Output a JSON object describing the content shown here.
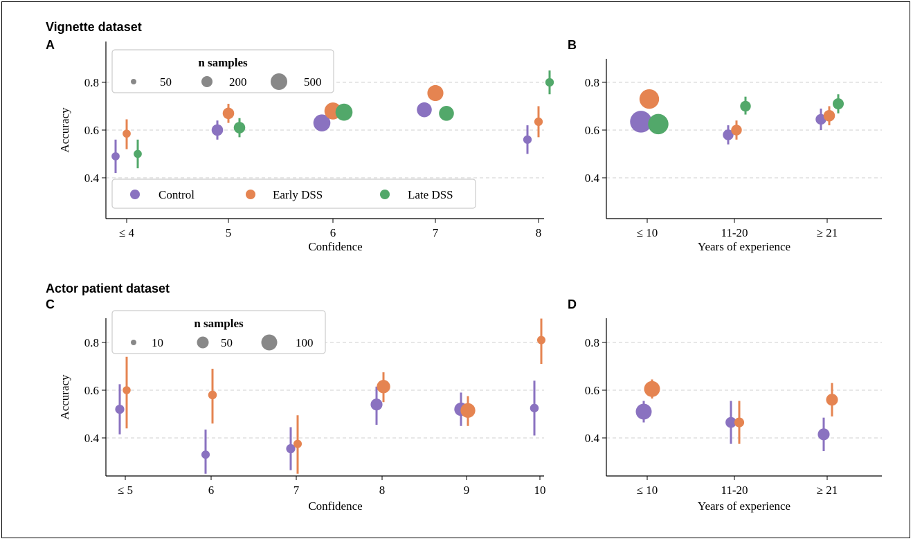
{
  "sections": {
    "top": "Vignette dataset",
    "bottom": "Actor patient dataset"
  },
  "colors": {
    "Control": "#8a72c0",
    "Early DSS": "#e58451",
    "Late DSS": "#52a86a",
    "grid": "#cfcfcf",
    "size_legend_marker": "#888888"
  },
  "legends": {
    "groups": [
      "Control",
      "Early DSS",
      "Late DSS"
    ],
    "size_legend_A": {
      "title": "n samples",
      "entries": [
        "50",
        "200",
        "500"
      ]
    },
    "size_legend_C": {
      "title": "n samples",
      "entries": [
        "10",
        "50",
        "100"
      ]
    }
  },
  "chart_data": [
    {
      "panel": "A",
      "type": "scatter",
      "xlabel": "Confidence",
      "ylabel": "Accuracy",
      "categories": [
        "≤ 4",
        "5",
        "6",
        "7",
        "8"
      ],
      "ylim": [
        0.3,
        0.9
      ],
      "yticks": [
        "0.4",
        "0.6",
        "0.8"
      ],
      "grid": "horizontal dashed",
      "legend_placement": "top-left (size), bottom-left (groups)",
      "series": [
        {
          "name": "Control",
          "values": [
            0.49,
            0.6,
            0.63,
            0.685,
            0.56
          ],
          "err_low": [
            0.42,
            0.56,
            0.615,
            0.67,
            0.5
          ],
          "err_high": [
            0.56,
            0.64,
            0.645,
            0.7,
            0.62
          ],
          "n": [
            15,
            80,
            300,
            200,
            20
          ]
        },
        {
          "name": "Early DSS",
          "values": [
            0.585,
            0.67,
            0.68,
            0.755,
            0.635
          ],
          "err_low": [
            0.52,
            0.63,
            0.66,
            0.745,
            0.57
          ],
          "err_high": [
            0.645,
            0.71,
            0.7,
            0.77,
            0.7
          ],
          "n": [
            15,
            80,
            300,
            250,
            20
          ]
        },
        {
          "name": "Late DSS",
          "values": [
            0.5,
            0.61,
            0.675,
            0.67,
            0.8
          ],
          "err_low": [
            0.44,
            0.57,
            0.66,
            0.655,
            0.75
          ],
          "err_high": [
            0.56,
            0.65,
            0.69,
            0.685,
            0.85
          ],
          "n": [
            15,
            80,
            300,
            200,
            20
          ]
        }
      ]
    },
    {
      "panel": "B",
      "type": "scatter",
      "xlabel": "Years of experience",
      "ylabel": "",
      "categories": [
        "≤ 10",
        "11-20",
        "≥ 21"
      ],
      "ylim": [
        0.3,
        0.9
      ],
      "yticks": [
        "0.4",
        "0.6",
        "0.8"
      ],
      "grid": "horizontal dashed",
      "series": [
        {
          "name": "Control",
          "values": [
            0.635,
            0.58,
            0.645
          ],
          "err_low": [
            0.62,
            0.54,
            0.6
          ],
          "err_high": [
            0.65,
            0.62,
            0.69
          ],
          "n": [
            600,
            60,
            60
          ]
        },
        {
          "name": "Early DSS",
          "values": [
            0.73,
            0.6,
            0.66
          ],
          "err_low": [
            0.72,
            0.56,
            0.62
          ],
          "err_high": [
            0.74,
            0.64,
            0.7
          ],
          "n": [
            450,
            60,
            80
          ]
        },
        {
          "name": "Late DSS",
          "values": [
            0.625,
            0.7,
            0.71
          ],
          "err_low": [
            0.61,
            0.665,
            0.67
          ],
          "err_high": [
            0.64,
            0.74,
            0.75
          ],
          "n": [
            500,
            60,
            70
          ]
        }
      ]
    },
    {
      "panel": "C",
      "type": "scatter",
      "xlabel": "Confidence",
      "ylabel": "Accuracy",
      "categories": [
        "≤ 5",
        "6",
        "7",
        "8",
        "9",
        "10"
      ],
      "ylim": [
        0.25,
        0.9
      ],
      "yticks": [
        "0.4",
        "0.6",
        "0.8"
      ],
      "grid": "horizontal dashed",
      "legend_placement": "top-left (size)",
      "series": [
        {
          "name": "Control",
          "values": [
            0.52,
            0.33,
            0.355,
            0.54,
            0.52,
            0.525
          ],
          "err_low": [
            0.415,
            0.25,
            0.265,
            0.455,
            0.45,
            0.41
          ],
          "err_high": [
            0.625,
            0.435,
            0.445,
            0.615,
            0.59,
            0.64
          ],
          "n": [
            15,
            10,
            15,
            40,
            60,
            12
          ]
        },
        {
          "name": "Early DSS",
          "values": [
            0.6,
            0.58,
            0.375,
            0.615,
            0.515,
            0.81
          ],
          "err_low": [
            0.44,
            0.46,
            0.25,
            0.55,
            0.45,
            0.71
          ],
          "err_high": [
            0.74,
            0.69,
            0.495,
            0.675,
            0.575,
            0.9
          ],
          "n": [
            8,
            12,
            10,
            60,
            80,
            10
          ]
        }
      ]
    },
    {
      "panel": "D",
      "type": "scatter",
      "xlabel": "Years of experience",
      "ylabel": "",
      "categories": [
        "≤ 10",
        "11-20",
        "≥ 21"
      ],
      "ylim": [
        0.25,
        0.9
      ],
      "yticks": [
        "0.4",
        "0.6",
        "0.8"
      ],
      "grid": "horizontal dashed",
      "series": [
        {
          "name": "Control",
          "values": [
            0.51,
            0.465,
            0.415
          ],
          "err_low": [
            0.465,
            0.375,
            0.345
          ],
          "err_high": [
            0.555,
            0.555,
            0.485
          ],
          "n": [
            100,
            30,
            40
          ]
        },
        {
          "name": "Early DSS",
          "values": [
            0.605,
            0.465,
            0.56
          ],
          "err_low": [
            0.565,
            0.375,
            0.49
          ],
          "err_high": [
            0.645,
            0.555,
            0.63
          ],
          "n": [
            100,
            20,
            40
          ]
        }
      ]
    }
  ]
}
